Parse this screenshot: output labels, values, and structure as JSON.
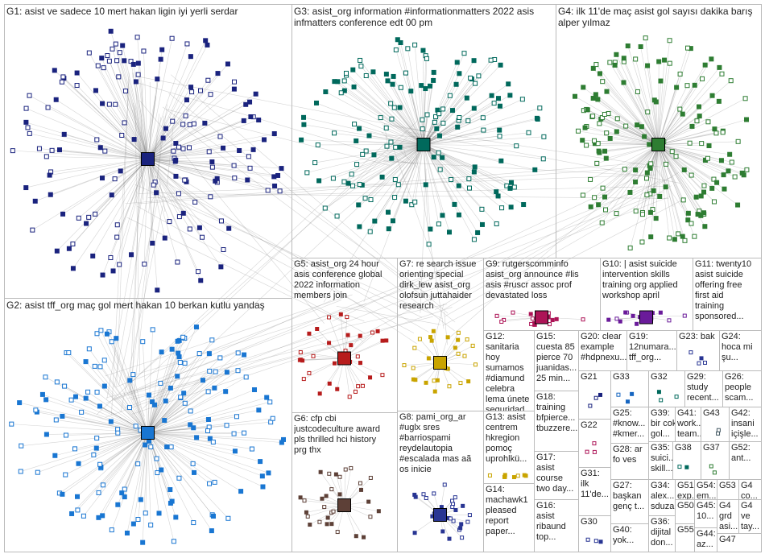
{
  "groups": [
    {
      "label_lines": [
        "G1: asist ve sadece 10 mert hakan ligin iyi yerli serdar"
      ]
    },
    {
      "label_lines": [
        "G2: asist tff_org maç gol mert hakan 10 berkan kutlu yandaş"
      ]
    },
    {
      "label_lines": [
        "G3: asist_org information #informationmatters 2022 asis",
        "infmatters conference edt 00 pm"
      ]
    },
    {
      "label_lines": [
        "G4: ilk 11'de maç asist gol sayısı dakika barış",
        "alper yılmaz"
      ]
    },
    {
      "label_lines": [
        "G5: asist_org 24 hour",
        "asis conference global",
        "2022 information",
        "members join"
      ]
    },
    {
      "label_lines": [
        "G7: re search issue",
        "orienting special",
        "dirk_lew asist_org",
        "olofsun juttahaider",
        "research"
      ]
    },
    {
      "label_lines": [
        "G9: rutgerscomminfo",
        "asist_org announce #lis",
        "asis #ruscr assoc prof",
        "devastated loss"
      ]
    },
    {
      "label_lines": [
        "G10: | asist suicide",
        "intervention skills",
        "training org applied",
        "workshop april"
      ]
    },
    {
      "label_lines": [
        "G11: twenty10",
        "asist suicide",
        "offering free",
        "first aid",
        "training",
        "sponsored..."
      ]
    },
    {
      "label_lines": [
        "G12:",
        "sanitaria",
        "hoy",
        "sumamos",
        "#diamund",
        "celebra",
        "lema únete",
        "seguridad..."
      ]
    },
    {
      "label_lines": [
        "G15:",
        "cuesta 85",
        "pierce 70",
        "juanidas...",
        "25 min..."
      ]
    },
    {
      "label_lines": [
        "G20: clear",
        "example",
        "#hdpnexu..."
      ]
    },
    {
      "label_lines": [
        "G19:",
        "12numara...",
        "tff_org..."
      ]
    },
    {
      "label_lines": [
        "G23: bak"
      ]
    },
    {
      "label_lines": [
        "G24:",
        "hoca mi",
        "şu..."
      ]
    },
    {
      "label_lines": [
        "G18:",
        "training",
        "bfpierce...",
        "tbuzzere..."
      ]
    },
    {
      "label_lines": [
        "G21"
      ]
    },
    {
      "label_lines": [
        "G33"
      ]
    },
    {
      "label_lines": [
        "G32"
      ]
    },
    {
      "label_lines": [
        "G29:",
        "study",
        "recent..."
      ]
    },
    {
      "label_lines": [
        "G26:",
        "people",
        "scam..."
      ]
    },
    {
      "label_lines": [
        "G13: asist",
        "centrem",
        "hkregion",
        "pomoç",
        "uprohlkü..."
      ]
    },
    {
      "label_lines": [
        "G22"
      ]
    },
    {
      "label_lines": [
        "G25:",
        "#know...",
        "#kmer..."
      ]
    },
    {
      "label_lines": [
        "G39:",
        "bir cok",
        "gol..."
      ]
    },
    {
      "label_lines": [
        "G41:",
        "work...",
        "team..."
      ]
    },
    {
      "label_lines": [
        "G43"
      ]
    },
    {
      "label_lines": [
        "G42:",
        "insani",
        "içişle..."
      ]
    },
    {
      "label_lines": [
        "G6: cfp cbi",
        "justcodeculture award",
        "pls thrilled hci history",
        "prg thx"
      ]
    },
    {
      "label_lines": [
        "G8: pami_org_ar",
        "#uglx sres",
        "#barriospami",
        "reydelautopia",
        "#escalada mas aã",
        "os inicie"
      ]
    },
    {
      "label_lines": [
        "G17:",
        "asist",
        "course",
        "two day..."
      ]
    },
    {
      "label_lines": [
        "G31:",
        "ilk",
        "11'de..."
      ]
    },
    {
      "label_lines": [
        "G28: ar",
        "fo ves"
      ]
    },
    {
      "label_lines": [
        "G35:",
        "suici...",
        "skill..."
      ]
    },
    {
      "label_lines": [
        "G38"
      ]
    },
    {
      "label_lines": [
        "G37"
      ]
    },
    {
      "label_lines": [
        "G52:",
        "ant..."
      ]
    },
    {
      "label_lines": [
        "G14:",
        "machawk1",
        "pleased",
        "report",
        "paper..."
      ]
    },
    {
      "label_lines": [
        "G16:",
        "asist",
        "ribaund",
        "top..."
      ]
    },
    {
      "label_lines": [
        "G27:",
        "başkan",
        "genç t..."
      ]
    },
    {
      "label_lines": [
        "G34:",
        "alex...",
        "sduza"
      ]
    },
    {
      "label_lines": [
        "G51:",
        "exp..."
      ]
    },
    {
      "label_lines": [
        "G54:",
        "em..."
      ]
    },
    {
      "label_lines": [
        "G53"
      ]
    },
    {
      "label_lines": [
        "G4",
        "co..."
      ]
    },
    {
      "label_lines": [
        "G30"
      ]
    },
    {
      "label_lines": [
        "G40:",
        "yok..."
      ]
    },
    {
      "label_lines": [
        "G36:",
        "dijital",
        "don..."
      ]
    },
    {
      "label_lines": [
        "G50"
      ]
    },
    {
      "label_lines": [
        "G45:",
        "10..."
      ]
    },
    {
      "label_lines": [
        "G4",
        "grd",
        "asi..."
      ]
    },
    {
      "label_lines": [
        "G4",
        "ve",
        "tay..."
      ]
    },
    {
      "label_lines": [
        "G55"
      ]
    },
    {
      "label_lines": [
        "G44:",
        "az..."
      ]
    },
    {
      "label_lines": [
        "G47"
      ]
    }
  ]
}
